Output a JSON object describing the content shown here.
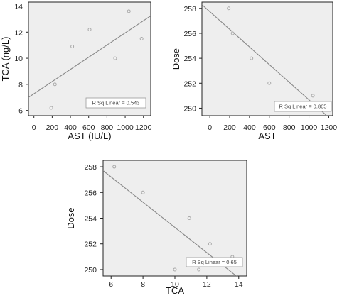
{
  "chart_data": [
    {
      "type": "scatter",
      "title": "",
      "xlabel": "AST (IU/L)",
      "ylabel": "TCA (ng/L)",
      "xlim": [
        -60,
        1280
      ],
      "ylim": [
        5.6,
        14.3
      ],
      "xticks": [
        0,
        200,
        400,
        600,
        800,
        1000,
        1200
      ],
      "yticks": [
        6,
        8,
        10,
        12,
        14
      ],
      "x": [
        190,
        230,
        420,
        610,
        890,
        1040,
        1180
      ],
      "y": [
        6.2,
        8.0,
        10.9,
        12.2,
        10.0,
        13.6,
        11.5
      ],
      "fit_line": {
        "x": [
          -60,
          1280
        ],
        "y": [
          7.0,
          13.25
        ]
      },
      "annotation": "R Sq Linear = 0.543",
      "colors": {
        "points": "#a8a8a8",
        "line": "#888888",
        "background": "#eeeeee"
      }
    },
    {
      "type": "scatter",
      "title": "",
      "xlabel": "AST",
      "ylabel": "Dose",
      "xlim": [
        -80,
        1240
      ],
      "ylim": [
        249.4,
        258.5
      ],
      "xticks": [
        0,
        200,
        400,
        600,
        800,
        1000,
        1200
      ],
      "yticks": [
        250,
        252,
        254,
        256,
        258
      ],
      "x": [
        190,
        230,
        420,
        600,
        890,
        1040,
        1180
      ],
      "y": [
        258,
        256,
        254,
        252,
        250,
        251,
        250
      ],
      "fit_line": {
        "x": [
          -80,
          1180
        ],
        "y": [
          258.3,
          249.4
        ]
      },
      "annotation": "R Sq Linear = 0.865",
      "colors": {
        "points": "#a8a8a8",
        "line": "#888888",
        "background": "#eeeeee"
      }
    },
    {
      "type": "scatter",
      "title": "",
      "xlabel": "TCA",
      "ylabel": "Dose",
      "xlim": [
        5.5,
        14.5
      ],
      "ylim": [
        249.5,
        258.5
      ],
      "xticks": [
        6,
        8,
        10,
        12,
        14
      ],
      "yticks": [
        250,
        252,
        254,
        256,
        258
      ],
      "x": [
        6.2,
        8.0,
        10.0,
        10.9,
        11.5,
        12.2,
        13.6
      ],
      "y": [
        258,
        256,
        250,
        254,
        250,
        252,
        251
      ],
      "fit_line": {
        "x": [
          5.5,
          13.85
        ],
        "y": [
          257.7,
          249.5
        ]
      },
      "annotation": "R Sq Linear = 0.65",
      "colors": {
        "points": "#a8a8a8",
        "line": "#888888",
        "background": "#eeeeee"
      }
    }
  ]
}
